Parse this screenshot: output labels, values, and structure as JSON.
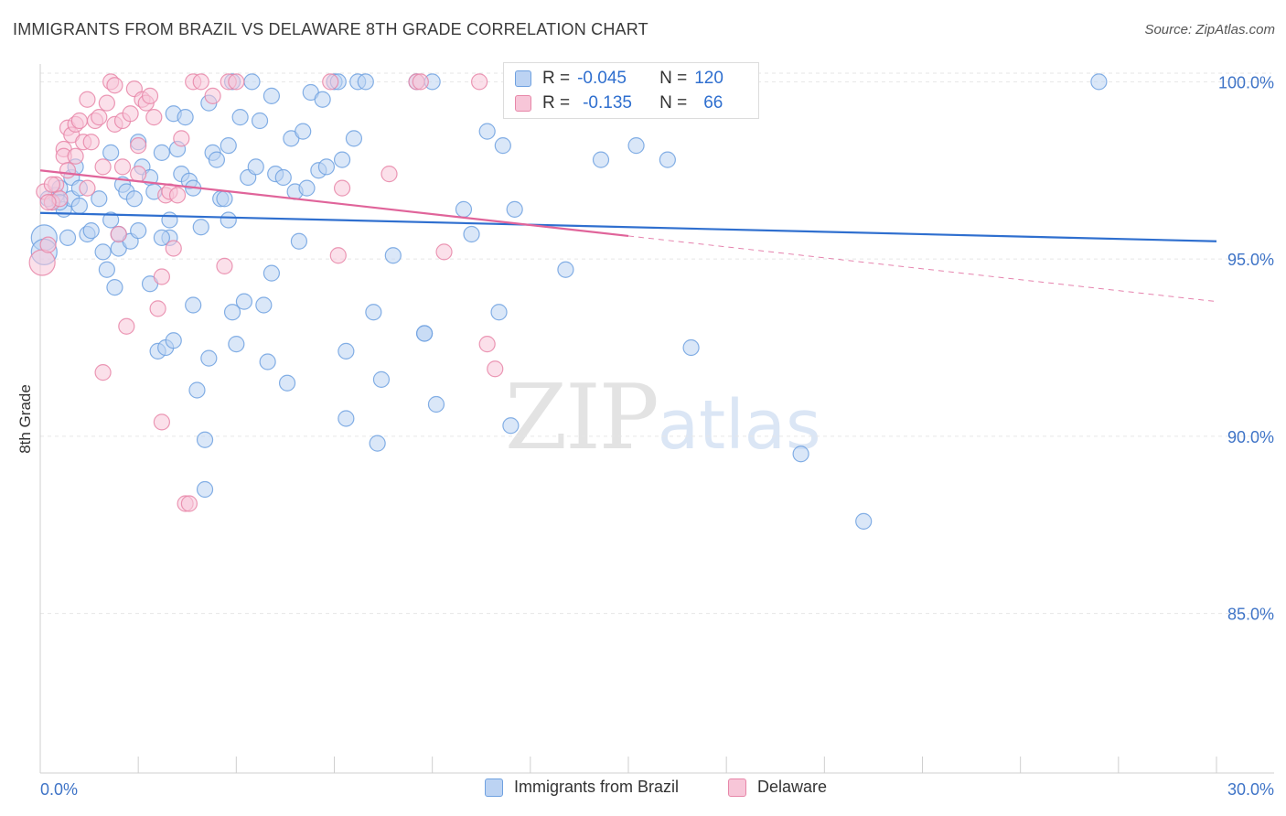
{
  "title": "IMMIGRANTS FROM BRAZIL VS DELAWARE 8TH GRADE CORRELATION CHART",
  "source": "Source: ZipAtlas.com",
  "watermark": {
    "zip": "ZIP",
    "atlas": "atlas"
  },
  "colors": {
    "blue": "#6fa1e0",
    "blue_fill": "#bcd3f3",
    "pink": "#e786a8",
    "pink_fill": "#f7c6d8",
    "blue_line": "#2f6fcf",
    "pink_line": "#e0649a",
    "tick_text": "#3f74c7"
  },
  "stats": {
    "brazil": {
      "r_label": "R =",
      "r_value": "-0.045",
      "n_label": "N =",
      "n_value": "120"
    },
    "delaware": {
      "r_label": "R =",
      "r_value": "-0.135",
      "n_label": "N =",
      "n_value": "66"
    }
  },
  "chart_data": {
    "type": "scatter",
    "title": "IMMIGRANTS FROM BRAZIL VS DELAWARE 8TH GRADE CORRELATION CHART",
    "xlabel": "",
    "ylabel": "8th Grade",
    "xlim": [
      0,
      30
    ],
    "ylim": [
      80.5,
      100.5
    ],
    "x_tick_labels": [
      "0.0%",
      "30.0%"
    ],
    "y_ticks": [
      85,
      90,
      95,
      100
    ],
    "y_tick_labels": [
      "85.0%",
      "90.0%",
      "95.0%",
      "100.0%"
    ],
    "grid": true,
    "legend_position": "bottom-center",
    "series": [
      {
        "name": "Immigrants from Brazil",
        "trend": {
          "x": [
            0,
            30
          ],
          "y": [
            96.3,
            95.5
          ],
          "dashed_from": null
        },
        "points": [
          [
            0.1,
            95.6
          ],
          [
            0.1,
            95.2
          ],
          [
            0.3,
            96.6
          ],
          [
            0.4,
            96.8
          ],
          [
            0.5,
            97.0
          ],
          [
            0.6,
            96.4
          ],
          [
            0.7,
            95.6
          ],
          [
            0.8,
            96.7
          ],
          [
            0.8,
            97.3
          ],
          [
            0.9,
            97.6
          ],
          [
            1.0,
            97.0
          ],
          [
            1.0,
            96.5
          ],
          [
            1.2,
            95.7
          ],
          [
            1.5,
            96.7
          ],
          [
            1.6,
            95.2
          ],
          [
            1.7,
            94.7
          ],
          [
            1.8,
            98.0
          ],
          [
            1.8,
            96.1
          ],
          [
            1.9,
            94.2
          ],
          [
            2.0,
            95.7
          ],
          [
            2.0,
            95.3
          ],
          [
            2.1,
            97.1
          ],
          [
            2.2,
            96.9
          ],
          [
            2.3,
            95.5
          ],
          [
            2.4,
            96.7
          ],
          [
            2.5,
            98.3
          ],
          [
            2.5,
            95.8
          ],
          [
            2.6,
            97.6
          ],
          [
            2.8,
            97.3
          ],
          [
            2.8,
            94.3
          ],
          [
            2.9,
            96.9
          ],
          [
            3.0,
            92.4
          ],
          [
            3.1,
            98.0
          ],
          [
            3.2,
            92.5
          ],
          [
            3.3,
            96.1
          ],
          [
            3.3,
            95.6
          ],
          [
            3.4,
            92.7
          ],
          [
            3.4,
            99.1
          ],
          [
            3.5,
            98.1
          ],
          [
            3.6,
            97.4
          ],
          [
            3.7,
            99.0
          ],
          [
            3.8,
            97.2
          ],
          [
            3.9,
            93.7
          ],
          [
            3.9,
            97.0
          ],
          [
            4.0,
            91.3
          ],
          [
            4.1,
            95.9
          ],
          [
            4.2,
            88.5
          ],
          [
            4.2,
            89.9
          ],
          [
            4.3,
            99.4
          ],
          [
            4.3,
            92.2
          ],
          [
            4.4,
            98.0
          ],
          [
            4.5,
            97.8
          ],
          [
            4.6,
            96.7
          ],
          [
            4.7,
            96.7
          ],
          [
            4.8,
            96.1
          ],
          [
            4.8,
            98.2
          ],
          [
            4.9,
            93.5
          ],
          [
            5.0,
            92.6
          ],
          [
            5.1,
            99.0
          ],
          [
            5.2,
            93.8
          ],
          [
            5.3,
            97.3
          ],
          [
            5.4,
            100.0
          ],
          [
            5.5,
            97.6
          ],
          [
            5.6,
            98.9
          ],
          [
            5.7,
            93.7
          ],
          [
            5.8,
            92.1
          ],
          [
            5.9,
            94.6
          ],
          [
            5.9,
            99.6
          ],
          [
            6.0,
            97.4
          ],
          [
            6.2,
            97.3
          ],
          [
            6.3,
            91.5
          ],
          [
            6.4,
            98.4
          ],
          [
            6.5,
            96.9
          ],
          [
            6.6,
            95.5
          ],
          [
            6.7,
            98.6
          ],
          [
            6.8,
            97.0
          ],
          [
            6.9,
            99.7
          ],
          [
            7.1,
            97.5
          ],
          [
            7.2,
            99.5
          ],
          [
            7.3,
            97.6
          ],
          [
            7.5,
            100.0
          ],
          [
            7.6,
            100.0
          ],
          [
            7.7,
            97.8
          ],
          [
            7.8,
            92.4
          ],
          [
            7.8,
            90.5
          ],
          [
            8.0,
            98.4
          ],
          [
            8.1,
            100.0
          ],
          [
            8.3,
            100.0
          ],
          [
            8.5,
            93.5
          ],
          [
            8.6,
            89.8
          ],
          [
            8.7,
            91.6
          ],
          [
            9.0,
            95.1
          ],
          [
            9.6,
            100.0
          ],
          [
            9.8,
            92.9
          ],
          [
            9.8,
            92.9
          ],
          [
            10.0,
            100.0
          ],
          [
            10.1,
            90.9
          ],
          [
            10.8,
            96.4
          ],
          [
            11.0,
            95.7
          ],
          [
            11.4,
            98.6
          ],
          [
            11.7,
            93.5
          ],
          [
            11.8,
            98.2
          ],
          [
            12.0,
            90.3
          ],
          [
            12.1,
            96.4
          ],
          [
            12.8,
            100.0
          ],
          [
            13.4,
            94.7
          ],
          [
            13.9,
            100.0
          ],
          [
            14.3,
            97.8
          ],
          [
            15.2,
            98.2
          ],
          [
            16.0,
            97.8
          ],
          [
            16.3,
            100.0
          ],
          [
            16.6,
            92.5
          ],
          [
            19.4,
            89.5
          ],
          [
            21.0,
            87.6
          ],
          [
            27.0,
            100.0
          ],
          [
            0.2,
            96.7
          ],
          [
            0.5,
            96.6
          ],
          [
            1.3,
            95.8
          ],
          [
            3.1,
            95.6
          ],
          [
            4.9,
            100.0
          ]
        ]
      },
      {
        "name": "Delaware",
        "trend": {
          "x": [
            0,
            30
          ],
          "y": [
            97.5,
            93.8
          ],
          "dashed_from": 15
        },
        "points": [
          [
            0.05,
            94.9
          ],
          [
            0.1,
            96.9
          ],
          [
            0.2,
            95.4
          ],
          [
            0.3,
            96.6
          ],
          [
            0.4,
            97.1
          ],
          [
            0.5,
            96.7
          ],
          [
            0.6,
            98.1
          ],
          [
            0.6,
            97.9
          ],
          [
            0.7,
            98.7
          ],
          [
            0.7,
            97.5
          ],
          [
            0.8,
            98.5
          ],
          [
            0.9,
            98.8
          ],
          [
            0.9,
            97.9
          ],
          [
            1.0,
            98.9
          ],
          [
            1.1,
            98.3
          ],
          [
            1.2,
            97.0
          ],
          [
            1.2,
            99.5
          ],
          [
            1.3,
            98.3
          ],
          [
            1.4,
            98.9
          ],
          [
            1.5,
            99.0
          ],
          [
            1.6,
            97.6
          ],
          [
            1.6,
            91.8
          ],
          [
            1.7,
            99.4
          ],
          [
            1.8,
            100.0
          ],
          [
            1.9,
            98.8
          ],
          [
            1.9,
            99.9
          ],
          [
            2.0,
            95.7
          ],
          [
            2.1,
            98.9
          ],
          [
            2.1,
            97.6
          ],
          [
            2.2,
            93.1
          ],
          [
            2.3,
            99.1
          ],
          [
            2.4,
            99.8
          ],
          [
            2.5,
            98.2
          ],
          [
            2.5,
            97.4
          ],
          [
            2.6,
            99.5
          ],
          [
            2.7,
            99.4
          ],
          [
            2.8,
            99.6
          ],
          [
            2.9,
            99.0
          ],
          [
            3.0,
            93.6
          ],
          [
            3.1,
            94.5
          ],
          [
            3.1,
            90.4
          ],
          [
            3.2,
            96.8
          ],
          [
            3.3,
            96.9
          ],
          [
            3.4,
            95.3
          ],
          [
            3.5,
            96.8
          ],
          [
            3.6,
            98.4
          ],
          [
            3.7,
            88.1
          ],
          [
            3.8,
            88.1
          ],
          [
            3.9,
            100.0
          ],
          [
            4.1,
            100.0
          ],
          [
            4.4,
            99.6
          ],
          [
            4.7,
            94.8
          ],
          [
            4.8,
            100.0
          ],
          [
            5.0,
            100.0
          ],
          [
            7.4,
            100.0
          ],
          [
            7.6,
            95.1
          ],
          [
            7.7,
            97.0
          ],
          [
            8.9,
            97.4
          ],
          [
            9.6,
            100.0
          ],
          [
            9.7,
            100.0
          ],
          [
            10.3,
            95.2
          ],
          [
            11.2,
            100.0
          ],
          [
            11.4,
            92.6
          ],
          [
            11.6,
            91.9
          ],
          [
            0.2,
            96.6
          ],
          [
            0.3,
            97.1
          ]
        ]
      }
    ]
  },
  "legend": [
    {
      "label": "Immigrants from Brazil"
    },
    {
      "label": "Delaware"
    }
  ]
}
